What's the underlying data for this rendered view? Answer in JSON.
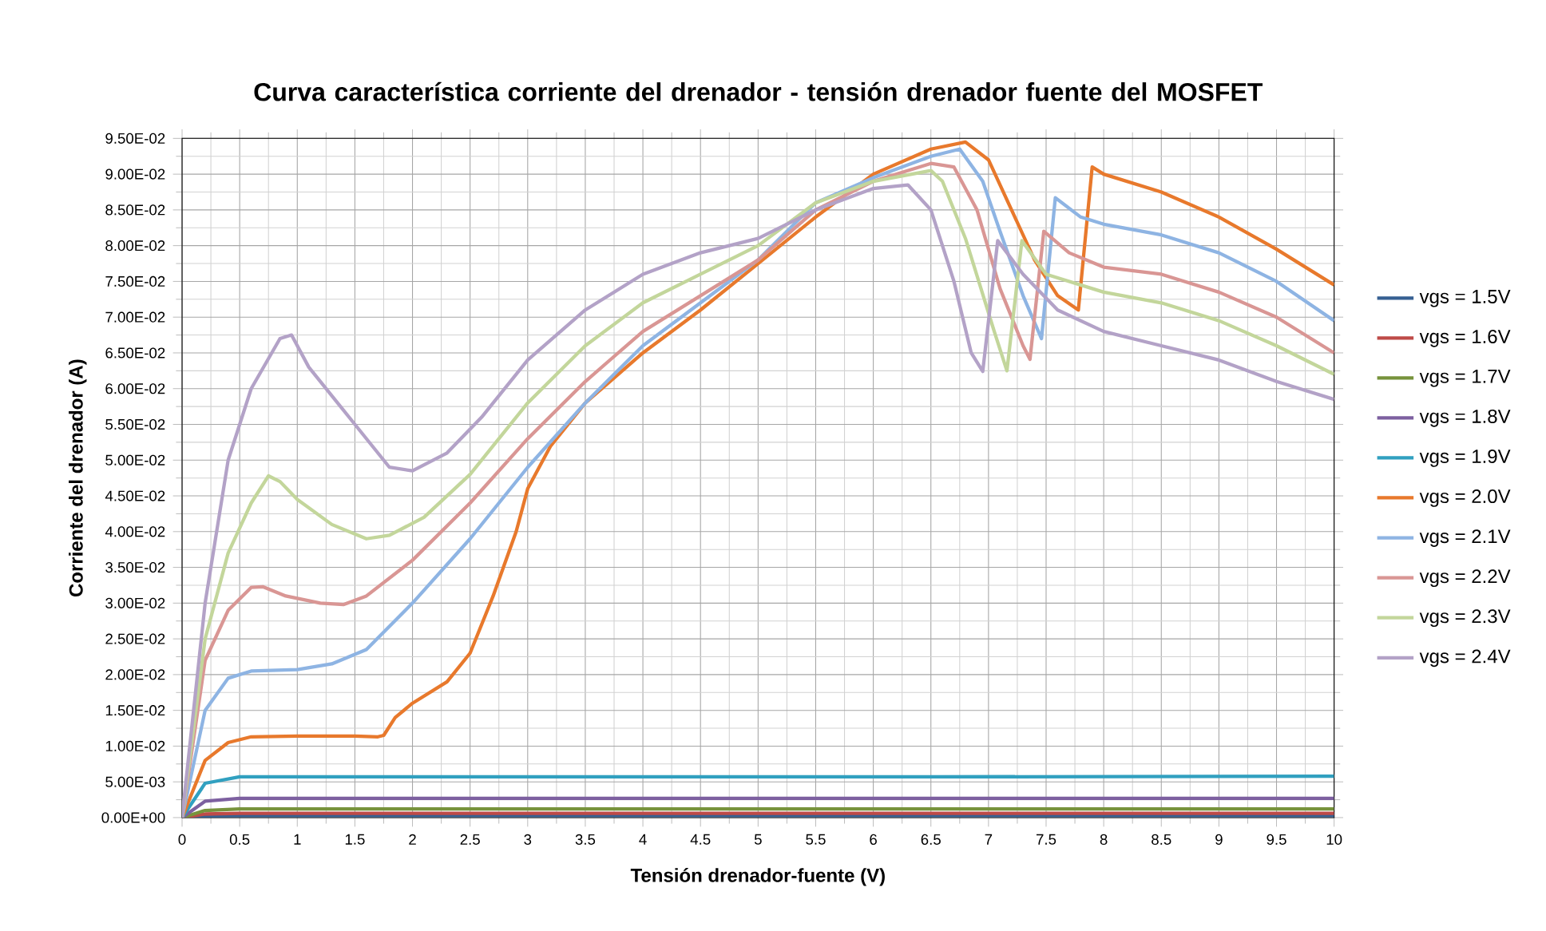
{
  "chart_data": {
    "type": "line",
    "title": "Curva característica corriente del drenador - tensión drenador fuente del MOSFET",
    "xlabel": "Tensión drenador-fuente (V)",
    "ylabel": "Corriente del drenador (A)",
    "xlim": [
      0,
      10
    ],
    "ylim": [
      0,
      0.095
    ],
    "xticks": [
      0,
      0.5,
      1,
      1.5,
      2,
      2.5,
      3,
      3.5,
      4,
      4.5,
      5,
      5.5,
      6,
      6.5,
      7,
      7.5,
      8,
      8.5,
      9,
      9.5,
      10
    ],
    "yticks": [
      {
        "value": 0,
        "label": "0.00E+00"
      },
      {
        "value": 0.005,
        "label": "5.00E-03"
      },
      {
        "value": 0.01,
        "label": "1.00E-02"
      },
      {
        "value": 0.015,
        "label": "1.50E-02"
      },
      {
        "value": 0.02,
        "label": "2.00E-02"
      },
      {
        "value": 0.025,
        "label": "2.50E-02"
      },
      {
        "value": 0.03,
        "label": "3.00E-02"
      },
      {
        "value": 0.035,
        "label": "3.50E-02"
      },
      {
        "value": 0.04,
        "label": "4.00E-02"
      },
      {
        "value": 0.045,
        "label": "4.50E-02"
      },
      {
        "value": 0.05,
        "label": "5.00E-02"
      },
      {
        "value": 0.055,
        "label": "5.50E-02"
      },
      {
        "value": 0.06,
        "label": "6.00E-02"
      },
      {
        "value": 0.065,
        "label": "6.50E-02"
      },
      {
        "value": 0.07,
        "label": "7.00E-02"
      },
      {
        "value": 0.075,
        "label": "7.50E-02"
      },
      {
        "value": 0.08,
        "label": "8.00E-02"
      },
      {
        "value": 0.085,
        "label": "8.50E-02"
      },
      {
        "value": 0.09,
        "label": "9.00E-02"
      },
      {
        "value": 0.095,
        "label": "9.50E-02"
      }
    ],
    "grid": true,
    "legend": "right",
    "series": [
      {
        "name": "vgs = 1.5V",
        "color": "#366092",
        "x": [
          0,
          0.2,
          0.5,
          10
        ],
        "values": [
          0,
          0.0002,
          0.0003,
          0.0003
        ]
      },
      {
        "name": "vgs = 1.6V",
        "color": "#be4b48",
        "x": [
          0,
          0.2,
          0.5,
          10
        ],
        "values": [
          0,
          0.0005,
          0.0006,
          0.0006
        ]
      },
      {
        "name": "vgs = 1.7V",
        "color": "#77933c",
        "x": [
          0,
          0.2,
          0.5,
          10
        ],
        "values": [
          0,
          0.001,
          0.0012,
          0.0012
        ]
      },
      {
        "name": "vgs = 1.8V",
        "color": "#7d60a0",
        "x": [
          0,
          0.2,
          0.5,
          10
        ],
        "values": [
          0,
          0.0023,
          0.0027,
          0.0027
        ]
      },
      {
        "name": "vgs = 1.9V",
        "color": "#31a0c0",
        "x": [
          0,
          0.2,
          0.5,
          6.5,
          10
        ],
        "values": [
          0,
          0.0048,
          0.0057,
          0.0057,
          0.0058
        ]
      },
      {
        "name": "vgs = 2.0V",
        "color": "#e8792c",
        "x": [
          0,
          0.2,
          0.4,
          0.6,
          1,
          1.5,
          1.7,
          1.75,
          1.85,
          2,
          2.3,
          2.5,
          2.7,
          2.9,
          3.0,
          3.2,
          3.5,
          4,
          4.5,
          5,
          5.5,
          6,
          6.5,
          6.8,
          7,
          7.2,
          7.4,
          7.6,
          7.78,
          7.9,
          8,
          8.5,
          9,
          9.5,
          10
        ],
        "values": [
          0,
          0.008,
          0.0105,
          0.0113,
          0.0114,
          0.0114,
          0.0113,
          0.0115,
          0.014,
          0.016,
          0.019,
          0.023,
          0.031,
          0.04,
          0.046,
          0.052,
          0.058,
          0.065,
          0.071,
          0.0775,
          0.084,
          0.09,
          0.0935,
          0.0945,
          0.092,
          0.085,
          0.078,
          0.073,
          0.071,
          0.091,
          0.09,
          0.0875,
          0.084,
          0.0795,
          0.0745
        ]
      },
      {
        "name": "vgs = 2.1V",
        "color": "#8eb4e3",
        "x": [
          0,
          0.2,
          0.4,
          0.6,
          1,
          1.3,
          1.6,
          2,
          2.5,
          3,
          3.5,
          4,
          4.5,
          5,
          5.5,
          6,
          6.5,
          6.75,
          6.95,
          7.1,
          7.3,
          7.46,
          7.58,
          7.8,
          8,
          8.5,
          9,
          9.5,
          10
        ],
        "values": [
          0,
          0.015,
          0.0195,
          0.0205,
          0.0207,
          0.0215,
          0.0235,
          0.03,
          0.039,
          0.049,
          0.058,
          0.066,
          0.072,
          0.078,
          0.086,
          0.0895,
          0.0925,
          0.0935,
          0.089,
          0.082,
          0.073,
          0.067,
          0.0867,
          0.084,
          0.083,
          0.0815,
          0.079,
          0.075,
          0.0695
        ]
      },
      {
        "name": "vgs = 2.2V",
        "color": "#d99694",
        "x": [
          0,
          0.2,
          0.4,
          0.6,
          0.7,
          0.9,
          1.2,
          1.4,
          1.6,
          2,
          2.5,
          3,
          3.5,
          4,
          4.5,
          5,
          5.5,
          6,
          6.5,
          6.7,
          6.9,
          7.1,
          7.3,
          7.36,
          7.48,
          7.7,
          8,
          8.5,
          9,
          9.5,
          10
        ],
        "values": [
          0,
          0.022,
          0.029,
          0.0322,
          0.0323,
          0.031,
          0.03,
          0.0298,
          0.031,
          0.036,
          0.044,
          0.053,
          0.061,
          0.068,
          0.073,
          0.078,
          0.085,
          0.089,
          0.0915,
          0.091,
          0.085,
          0.074,
          0.066,
          0.0641,
          0.082,
          0.079,
          0.077,
          0.076,
          0.0735,
          0.07,
          0.065
        ]
      },
      {
        "name": "vgs = 2.3V",
        "color": "#c3d69b",
        "x": [
          0,
          0.2,
          0.4,
          0.6,
          0.75,
          0.85,
          1,
          1.3,
          1.6,
          1.8,
          2.1,
          2.5,
          3,
          3.5,
          4,
          4.5,
          5,
          5.5,
          6,
          6.5,
          6.6,
          6.8,
          7.05,
          7.16,
          7.29,
          7.5,
          8,
          8.5,
          9,
          9.5,
          10
        ],
        "values": [
          0,
          0.025,
          0.037,
          0.044,
          0.0478,
          0.047,
          0.0445,
          0.041,
          0.039,
          0.0395,
          0.042,
          0.048,
          0.058,
          0.066,
          0.072,
          0.076,
          0.08,
          0.086,
          0.089,
          0.0905,
          0.089,
          0.081,
          0.068,
          0.0625,
          0.0807,
          0.076,
          0.0735,
          0.072,
          0.0695,
          0.066,
          0.062
        ]
      },
      {
        "name": "vgs = 2.4V",
        "color": "#b3a2c7",
        "x": [
          0,
          0.2,
          0.4,
          0.6,
          0.85,
          0.95,
          1.1,
          1.5,
          1.8,
          2,
          2.3,
          2.6,
          3,
          3.5,
          4,
          4.5,
          5,
          5.5,
          6,
          6.3,
          6.5,
          6.7,
          6.85,
          6.95,
          7.08,
          7.3,
          7.6,
          8,
          8.5,
          9,
          9.5,
          10
        ],
        "values": [
          0,
          0.03,
          0.05,
          0.06,
          0.067,
          0.0675,
          0.063,
          0.055,
          0.049,
          0.0485,
          0.051,
          0.056,
          0.064,
          0.071,
          0.076,
          0.079,
          0.081,
          0.085,
          0.088,
          0.0885,
          0.085,
          0.075,
          0.065,
          0.0624,
          0.0807,
          0.076,
          0.071,
          0.068,
          0.066,
          0.064,
          0.061,
          0.0585
        ]
      }
    ]
  }
}
